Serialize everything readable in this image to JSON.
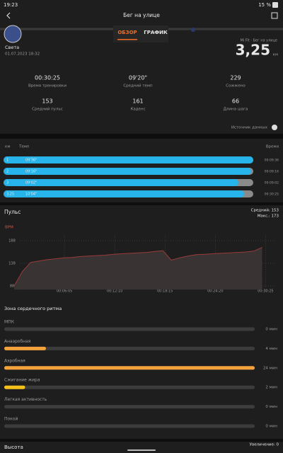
{
  "status_bar": {
    "time": "19:23",
    "battery": "15 %"
  },
  "header": {
    "title": "Бег на улице"
  },
  "tabs": [
    "ОБЗОР",
    "ГРАФИК"
  ],
  "profile": {
    "name": "Света",
    "date": "01.07.2023 18:32",
    "source": "Mi Fit · Бег на улице",
    "distance": "3,25",
    "distance_unit": "км"
  },
  "stats": [
    {
      "value": "00:30:25",
      "label": "Время тренировки"
    },
    {
      "value": "09'20\"",
      "label": "Средний темп"
    },
    {
      "value": "229",
      "label": "Сожжено"
    },
    {
      "value": "153",
      "label": "Средний пульс"
    },
    {
      "value": "161",
      "label": "Каденс"
    },
    {
      "value": "66",
      "label": "Длина шага"
    }
  ],
  "data_source": "Источник данных",
  "splits": {
    "headers": [
      "км",
      "Темп",
      "Время"
    ],
    "rows": [
      [
        "1",
        "09'36\"",
        "00:09:36"
      ],
      [
        "2",
        "09'16\"",
        "00:09:16"
      ],
      [
        "3",
        "09'02\"",
        "00:09:02"
      ],
      [
        "3,25",
        "10'04\"",
        "00:30:25"
      ]
    ]
  },
  "pulse": {
    "title": "Пульс",
    "average": "Средний: 153",
    "max": "Макс.: 173"
  },
  "chart_data": {
    "type": "line",
    "y_label": "BPM",
    "x": [
      0,
      60,
      120,
      180,
      240,
      300,
      360,
      420,
      480,
      540,
      600,
      660,
      720,
      780,
      840,
      900,
      960,
      1020,
      1080,
      1140,
      1200,
      1260,
      1320,
      1380,
      1440,
      1500,
      1560,
      1620,
      1680,
      1740,
      1800
    ],
    "series": [
      {
        "color": "#9a3a3a",
        "values": [
          88,
          120,
          140,
          143,
          146,
          148,
          150,
          151,
          153,
          154,
          155,
          156,
          158,
          159,
          160,
          161,
          162,
          164,
          166,
          145,
          150,
          154,
          157,
          158,
          159,
          160,
          161,
          162,
          163,
          165,
          173
        ]
      }
    ],
    "xlim": [
      0,
      1900
    ],
    "ylim": [
      80,
      200
    ],
    "yticks": [
      88,
      138,
      188
    ],
    "xticks": [
      {
        "value": 365,
        "label": "00:06:05"
      },
      {
        "value": 730,
        "label": "00:12:10"
      },
      {
        "value": 1095,
        "label": "00:18:15"
      },
      {
        "value": 1460,
        "label": "00:24:20"
      },
      {
        "value": 1825,
        "label": "00:30:25"
      }
    ],
    "grid": true
  },
  "heart_zones": {
    "title": "Зона сердечного ритма",
    "names": [
      "МПК",
      "Анаэробная",
      "Аэробная",
      "Сжигание жира",
      "Легкая активность",
      "Покой"
    ],
    "values": [
      0,
      4,
      24,
      2,
      0,
      0
    ],
    "value_labels": [
      "0 мин",
      "4 мин",
      "24 мин",
      "2 мин",
      "0 мин",
      "0 мин"
    ],
    "colors": [
      "#e0523a",
      "#f3a23c",
      "#f3a23c",
      "#f5c21b",
      "#3fb5e8",
      "#9e9e9e"
    ]
  },
  "elevation": {
    "title": "Высота",
    "gain": "Увеличение: 0"
  }
}
